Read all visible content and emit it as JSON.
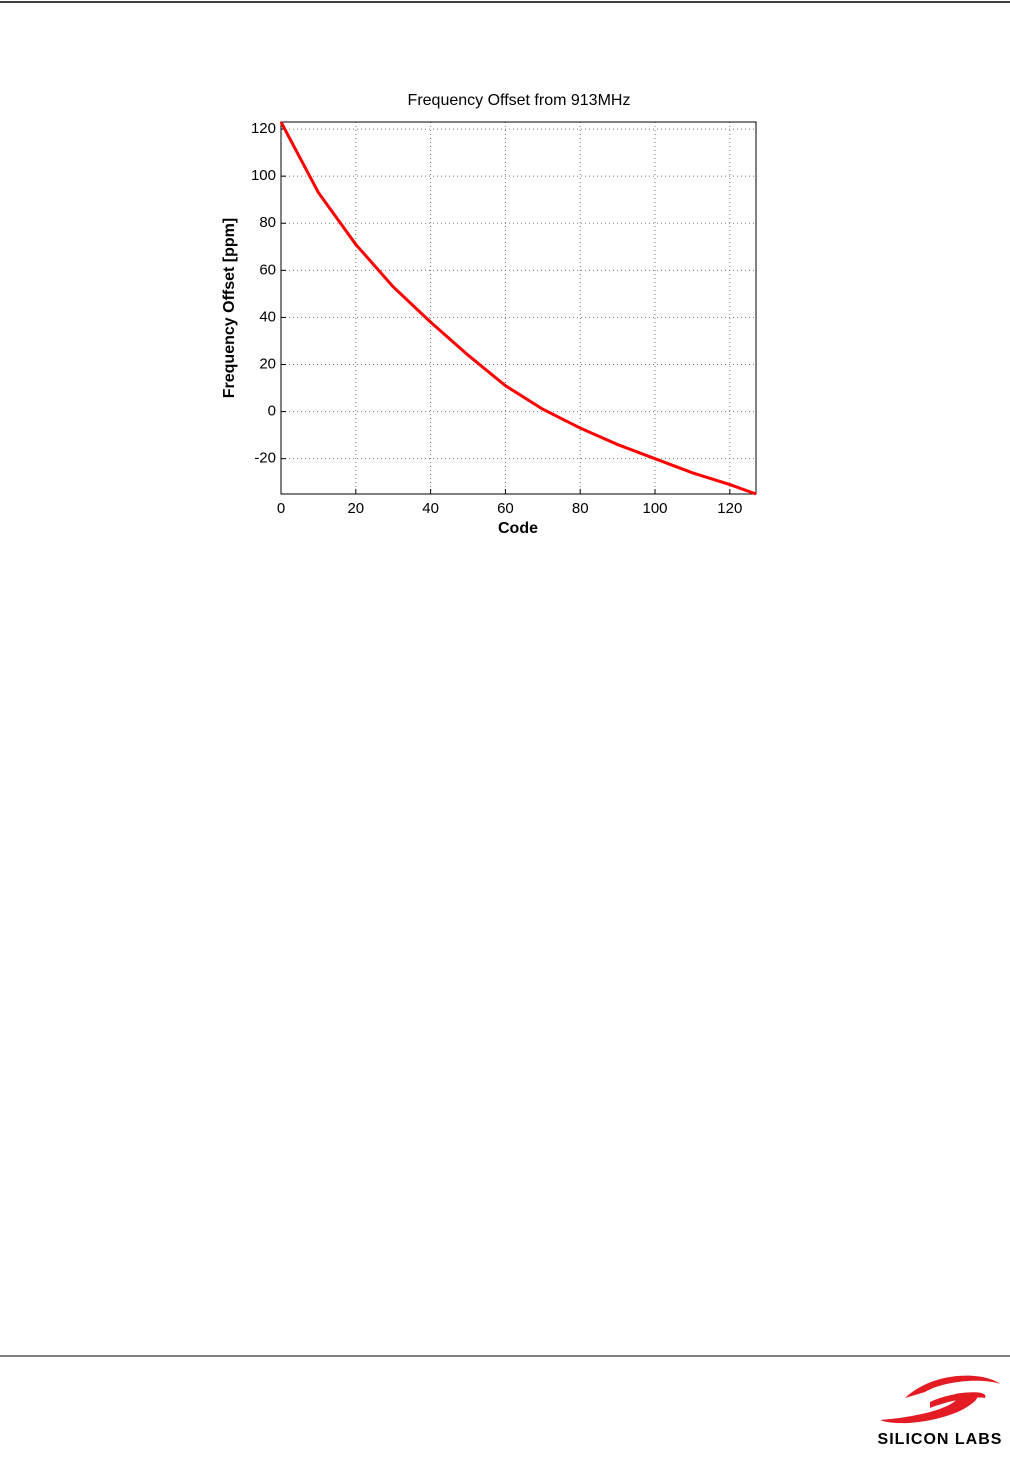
{
  "chart_data": {
    "type": "line",
    "title": "Frequency Offset from 913MHz",
    "x_label": "Code",
    "y_label": "Frequency Offset [ppm]",
    "x": [
      0,
      10,
      20,
      30,
      40,
      50,
      60,
      70,
      80,
      90,
      100,
      110,
      120,
      127
    ],
    "series": [
      {
        "color": "#ff0000",
        "values": [
          123,
          93,
          71,
          53,
          38,
          24,
          11,
          1,
          -7,
          -14,
          -20,
          -26,
          -31,
          -35
        ]
      }
    ],
    "xlim": [
      0,
      127
    ],
    "ylim": [
      -35,
      123
    ],
    "xticks": [
      0,
      20,
      40,
      60,
      80,
      100,
      120
    ],
    "yticks": [
      -20,
      0,
      20,
      40,
      60,
      80,
      100,
      120
    ],
    "grid": true
  },
  "footer": {
    "logo_text": "SILICON LABS"
  }
}
